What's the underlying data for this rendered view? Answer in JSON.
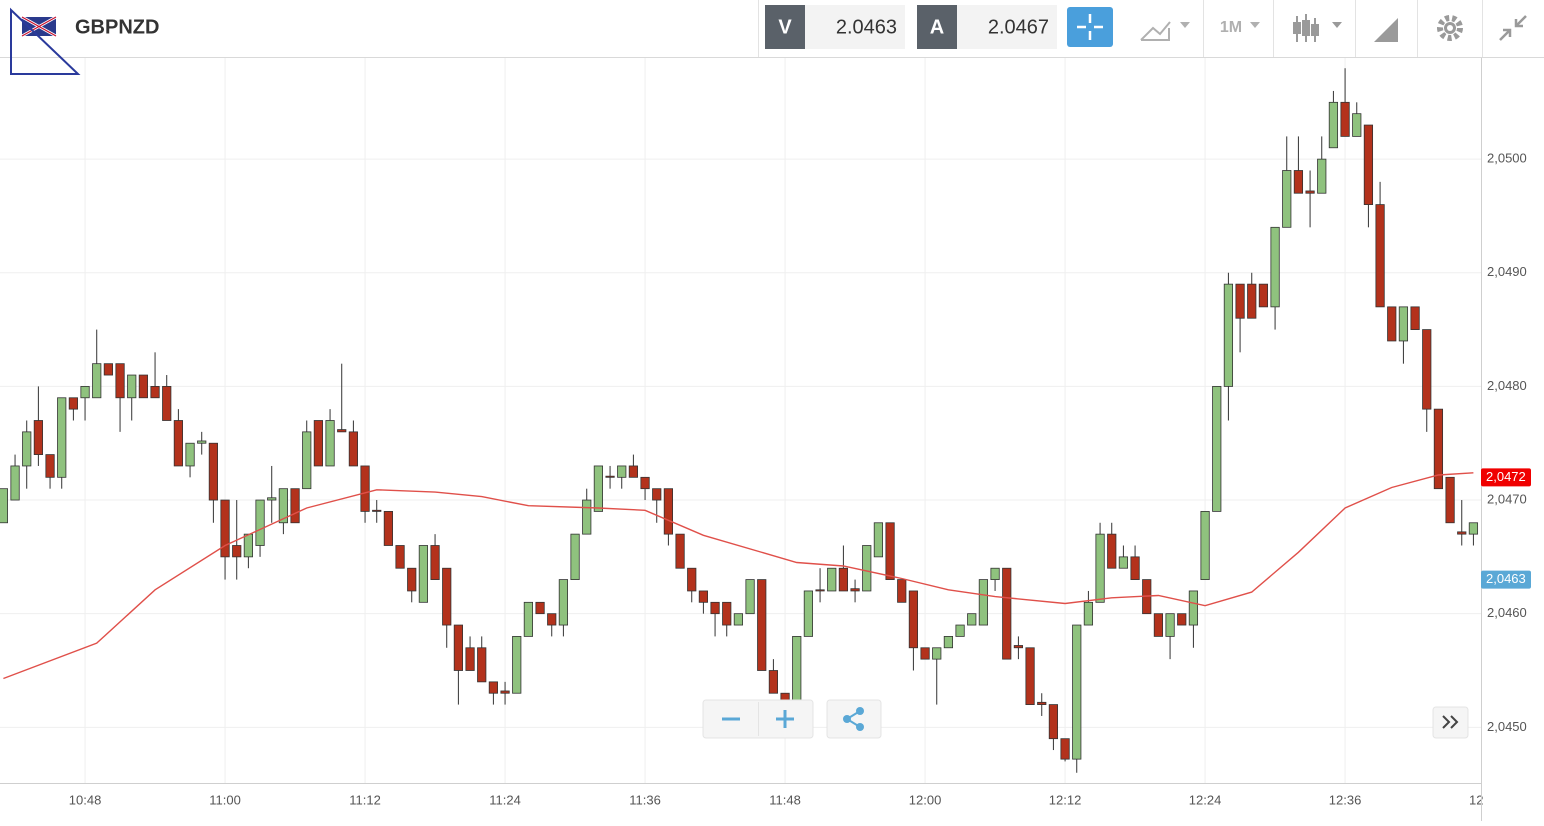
{
  "header": {
    "symbol": "GBPNZD",
    "bid_label": "V",
    "bid": 2.0463,
    "ask_label": "A",
    "ask": 2.0467,
    "timeframe": "1M"
  },
  "chart_data": {
    "type": "candlestick",
    "x": [
      641,
      642,
      643,
      644,
      645,
      646,
      647,
      648,
      649,
      650,
      651,
      652,
      653,
      654,
      655,
      656,
      657,
      658,
      659,
      660,
      661,
      662,
      663,
      664,
      665,
      666,
      667,
      668,
      669,
      670,
      671,
      672,
      673,
      674,
      675,
      676,
      677,
      678,
      679,
      680,
      681,
      682,
      683,
      684,
      685,
      686,
      687,
      688,
      689,
      690,
      691,
      692,
      693,
      694,
      695,
      696,
      697,
      698,
      699,
      700,
      701,
      702,
      703,
      704,
      705,
      706,
      707,
      708,
      709,
      710,
      711,
      712,
      713,
      714,
      715,
      716,
      717,
      718,
      719,
      720,
      721,
      722,
      723,
      724,
      725,
      726,
      727,
      728,
      729,
      730,
      731,
      732,
      733,
      734,
      735,
      736,
      737,
      738,
      739,
      740,
      741,
      742,
      743,
      744,
      745,
      746,
      747,
      748,
      749,
      750,
      751,
      752,
      753,
      754,
      755,
      756,
      757,
      758,
      759,
      760,
      761,
      762,
      763,
      764,
      765,
      766,
      767
    ],
    "open": [
      2.0468,
      2.047,
      2.0473,
      2.0477,
      2.0474,
      2.0472,
      2.0479,
      2.0479,
      2.0479,
      2.0482,
      2.0482,
      2.0479,
      2.0481,
      2.048,
      2.048,
      2.0477,
      2.0473,
      2.0475,
      2.0475,
      2.047,
      2.0466,
      2.0465,
      2.0466,
      2.047,
      2.0468,
      2.0471,
      2.0471,
      2.0477,
      2.0473,
      2.04762,
      2.0476,
      2.0473,
      2.04691,
      2.0469,
      2.0466,
      2.0464,
      2.0461,
      2.0466,
      2.0464,
      2.0459,
      2.0457,
      2.0457,
      2.0454,
      2.04532,
      2.0453,
      2.0458,
      2.0461,
      2.046,
      2.0459,
      2.0463,
      2.0467,
      2.0469,
      2.04721,
      2.0472,
      2.0473,
      2.0472,
      2.0471,
      2.0471,
      2.0467,
      2.0464,
      2.0462,
      2.0461,
      2.0461,
      2.0459,
      2.046,
      2.0463,
      2.0455,
      2.0453,
      2.0452,
      2.0458,
      2.04621,
      2.0462,
      2.0464,
      2.04622,
      2.0462,
      2.0465,
      2.0468,
      2.0463,
      2.0462,
      2.0457,
      2.0456,
      2.0457,
      2.0458,
      2.0459,
      2.0459,
      2.0463,
      2.0464,
      2.04572,
      2.0457,
      2.04522,
      2.0452,
      2.0449,
      2.04472,
      2.0459,
      2.0461,
      2.0467,
      2.0464,
      2.0465,
      2.0463,
      2.046,
      2.0458,
      2.046,
      2.0459,
      2.0463,
      2.0469,
      2.048,
      2.0489,
      2.0489,
      2.0489,
      2.0487,
      2.0494,
      2.0499,
      2.04972,
      2.0497,
      2.0501,
      2.0505,
      2.0502,
      2.0503,
      2.0496,
      2.0487,
      2.0484,
      2.0487,
      2.0485,
      2.0478,
      2.0472,
      2.04672,
      2.0467
    ],
    "high": [
      2.0471,
      2.0474,
      2.0477,
      2.048,
      2.0474,
      2.0479,
      2.0479,
      2.048,
      2.0485,
      2.0482,
      2.0482,
      2.0481,
      2.0481,
      2.0483,
      2.0481,
      2.0478,
      2.0475,
      2.0476,
      2.0475,
      2.047,
      2.047,
      2.0467,
      2.047,
      2.0473,
      2.0471,
      2.0471,
      2.0477,
      2.0477,
      2.0478,
      2.0482,
      2.0477,
      2.0473,
      2.047,
      2.0469,
      2.0466,
      2.0464,
      2.0466,
      2.0467,
      2.0464,
      2.0459,
      2.0458,
      2.0458,
      2.0454,
      2.0454,
      2.0458,
      2.0461,
      2.0461,
      2.046,
      2.0463,
      2.0467,
      2.0471,
      2.0473,
      2.0473,
      2.0473,
      2.0474,
      2.0472,
      2.0471,
      2.0471,
      2.0467,
      2.0464,
      2.0462,
      2.0461,
      2.0461,
      2.046,
      2.0463,
      2.0463,
      2.0456,
      2.0453,
      2.0458,
      2.0462,
      2.0464,
      2.0464,
      2.0466,
      2.0463,
      2.0466,
      2.0468,
      2.0468,
      2.0463,
      2.0462,
      2.0457,
      2.0457,
      2.0458,
      2.0459,
      2.046,
      2.0463,
      2.0464,
      2.0464,
      2.0458,
      2.0457,
      2.0453,
      2.0452,
      2.0449,
      2.0459,
      2.0462,
      2.0468,
      2.0468,
      2.0466,
      2.0466,
      2.0463,
      2.046,
      2.046,
      2.046,
      2.0462,
      2.0469,
      2.048,
      2.049,
      2.0489,
      2.049,
      2.0489,
      2.0494,
      2.0502,
      2.0502,
      2.0499,
      2.0502,
      2.0506,
      2.0508,
      2.0505,
      2.0503,
      2.0498,
      2.0487,
      2.0487,
      2.0487,
      2.0485,
      2.0478,
      2.0472,
      2.047,
      2.0468
    ],
    "low": [
      2.0468,
      2.047,
      2.0471,
      2.0473,
      2.0471,
      2.0471,
      2.0477,
      2.0477,
      2.0479,
      2.0481,
      2.0476,
      2.0477,
      2.0479,
      2.0479,
      2.0477,
      2.0473,
      2.0472,
      2.0474,
      2.0468,
      2.0463,
      2.0463,
      2.0464,
      2.0465,
      2.0468,
      2.0467,
      2.0468,
      2.0471,
      2.0473,
      2.0473,
      2.0476,
      2.0473,
      2.0468,
      2.0468,
      2.0466,
      2.0464,
      2.0461,
      2.0461,
      2.0463,
      2.0457,
      2.0452,
      2.0455,
      2.0454,
      2.0452,
      2.0452,
      2.0453,
      2.0458,
      2.046,
      2.0458,
      2.0458,
      2.0463,
      2.0467,
      2.0469,
      2.0471,
      2.0471,
      2.0472,
      2.047,
      2.0468,
      2.0466,
      2.0464,
      2.0461,
      2.046,
      2.0458,
      2.0458,
      2.0459,
      2.046,
      2.0455,
      2.0453,
      2.0452,
      2.0452,
      2.0458,
      2.0461,
      2.0462,
      2.0462,
      2.0461,
      2.0462,
      2.0465,
      2.0463,
      2.0461,
      2.0455,
      2.0456,
      2.0452,
      2.0457,
      2.0458,
      2.0459,
      2.0459,
      2.0462,
      2.0456,
      2.0456,
      2.0452,
      2.0451,
      2.0448,
      2.0447,
      2.0446,
      2.0459,
      2.0461,
      2.0464,
      2.0464,
      2.0463,
      2.046,
      2.0458,
      2.0456,
      2.0459,
      2.0457,
      2.0463,
      2.0469,
      2.0477,
      2.0483,
      2.0486,
      2.0487,
      2.0485,
      2.0494,
      2.0497,
      2.0494,
      2.0497,
      2.0501,
      2.0502,
      2.0502,
      2.0494,
      2.0487,
      2.0484,
      2.0482,
      2.0485,
      2.0476,
      2.0471,
      2.0468,
      2.0466,
      2.0466
    ],
    "close": [
      2.0471,
      2.0473,
      2.0476,
      2.0474,
      2.0472,
      2.0479,
      2.0478,
      2.048,
      2.0482,
      2.0481,
      2.0479,
      2.0481,
      2.0479,
      2.0479,
      2.0477,
      2.0473,
      2.0475,
      2.04752,
      2.047,
      2.0465,
      2.0465,
      2.0467,
      2.047,
      2.04702,
      2.0471,
      2.0468,
      2.0476,
      2.0473,
      2.0477,
      2.0476,
      2.0473,
      2.0469,
      2.0469,
      2.0466,
      2.0464,
      2.0462,
      2.0466,
      2.0463,
      2.0459,
      2.0455,
      2.0455,
      2.0454,
      2.0453,
      2.0453,
      2.0458,
      2.0461,
      2.046,
      2.0459,
      2.0463,
      2.0467,
      2.047,
      2.0473,
      2.0472,
      2.0473,
      2.0472,
      2.0471,
      2.047,
      2.0467,
      2.0464,
      2.0462,
      2.0461,
      2.046,
      2.0459,
      2.046,
      2.0463,
      2.0455,
      2.0453,
      2.0452,
      2.0458,
      2.0462,
      2.0462,
      2.0464,
      2.0462,
      2.0462,
      2.0466,
      2.0468,
      2.0463,
      2.0461,
      2.0457,
      2.0456,
      2.0457,
      2.0458,
      2.0459,
      2.046,
      2.0463,
      2.0464,
      2.0456,
      2.0457,
      2.0452,
      2.0452,
      2.0449,
      2.04472,
      2.0459,
      2.0461,
      2.0467,
      2.0464,
      2.0465,
      2.0463,
      2.046,
      2.0458,
      2.046,
      2.0459,
      2.0462,
      2.0469,
      2.048,
      2.0489,
      2.0486,
      2.0486,
      2.0487,
      2.0494,
      2.0499,
      2.0497,
      2.0497,
      2.05,
      2.0505,
      2.0502,
      2.0504,
      2.0496,
      2.0487,
      2.0484,
      2.0487,
      2.0485,
      2.0478,
      2.0471,
      2.0468,
      2.0467,
      2.0468
    ],
    "up_color": "#8fc27e",
    "down_color": "#b3321c",
    "moving_average": {
      "color": "#e0504a",
      "x": [
        641,
        649,
        654,
        660,
        667,
        673,
        678,
        682,
        686,
        692,
        696,
        701,
        709,
        713,
        718,
        722,
        726,
        732,
        736,
        740,
        744,
        748,
        752,
        756,
        760,
        764,
        767
      ],
      "values": [
        2.04543,
        2.04574,
        2.04621,
        2.0466,
        2.04693,
        2.04709,
        2.04707,
        2.04703,
        2.04695,
        2.04693,
        2.04691,
        2.04669,
        2.04645,
        2.04642,
        2.04631,
        2.04621,
        2.04615,
        2.04609,
        2.04614,
        2.04616,
        2.04607,
        2.04619,
        2.04654,
        2.04693,
        2.04711,
        2.04722,
        2.04724
      ]
    },
    "price_tags": [
      {
        "value": 2.0472,
        "label": "2,0472",
        "color": "#f00000"
      },
      {
        "value": 2.0463,
        "label": "2,0463",
        "color": "#5aa8d6"
      }
    ],
    "xlim": [
      640.71,
      767.65
    ],
    "ylim": [
      2.04451,
      2.05089
    ],
    "xticks": [
      {
        "value": 648,
        "label": "10:48"
      },
      {
        "value": 660,
        "label": "11:00"
      },
      {
        "value": 672,
        "label": "11:12"
      },
      {
        "value": 684,
        "label": "11:24"
      },
      {
        "value": 696,
        "label": "11:36"
      },
      {
        "value": 708,
        "label": "11:48"
      },
      {
        "value": 720,
        "label": "12:00"
      },
      {
        "value": 732,
        "label": "12:12"
      },
      {
        "value": 744,
        "label": "12:24"
      },
      {
        "value": 756,
        "label": "12:36"
      },
      {
        "value": 768,
        "label": "12"
      }
    ],
    "yticks": [
      {
        "value": 2.045,
        "label": "2,0450"
      },
      {
        "value": 2.046,
        "label": "2,0460"
      },
      {
        "value": 2.047,
        "label": "2,0470"
      },
      {
        "value": 2.048,
        "label": "2,0480"
      },
      {
        "value": 2.049,
        "label": "2,0490"
      },
      {
        "value": 2.05,
        "label": "2,0500"
      }
    ],
    "grid": true
  }
}
